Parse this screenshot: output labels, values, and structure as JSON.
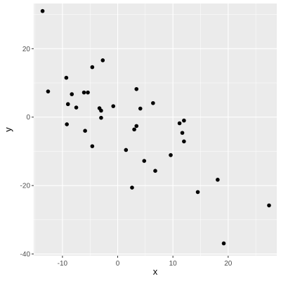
{
  "chart_data": {
    "type": "scatter",
    "title": "",
    "xlabel": "x",
    "ylabel": "y",
    "xlim": [
      -15.2,
      28.8
    ],
    "ylim": [
      -40.5,
      33.2
    ],
    "x_ticks": [
      -10,
      0,
      10,
      20
    ],
    "y_ticks": [
      -40,
      -20,
      0,
      20
    ],
    "grid": true,
    "panel_color": "#ebebeb",
    "point_color": "#000000",
    "points": [
      {
        "x": -13.6,
        "y": 31.0
      },
      {
        "x": -12.6,
        "y": 7.5
      },
      {
        "x": -9.3,
        "y": 11.5
      },
      {
        "x": -9.0,
        "y": 3.8
      },
      {
        "x": -9.2,
        "y": -2.1
      },
      {
        "x": -8.3,
        "y": 6.7
      },
      {
        "x": -7.5,
        "y": 2.8
      },
      {
        "x": -6.1,
        "y": 7.2
      },
      {
        "x": -5.4,
        "y": 7.2
      },
      {
        "x": -5.9,
        "y": -4.0
      },
      {
        "x": -4.6,
        "y": 14.6
      },
      {
        "x": -4.6,
        "y": -8.5
      },
      {
        "x": -3.3,
        "y": 2.6
      },
      {
        "x": -3.0,
        "y": 1.9
      },
      {
        "x": -3.0,
        "y": -0.2
      },
      {
        "x": -2.7,
        "y": 16.6
      },
      {
        "x": -0.8,
        "y": 3.2
      },
      {
        "x": 1.5,
        "y": -9.6
      },
      {
        "x": 2.6,
        "y": -20.6
      },
      {
        "x": 3.0,
        "y": -3.6
      },
      {
        "x": 3.4,
        "y": -2.6
      },
      {
        "x": 3.4,
        "y": 8.2
      },
      {
        "x": 4.1,
        "y": 2.5
      },
      {
        "x": 4.8,
        "y": -12.8
      },
      {
        "x": 6.4,
        "y": 4.1
      },
      {
        "x": 6.8,
        "y": -15.7
      },
      {
        "x": 9.6,
        "y": -11.1
      },
      {
        "x": 11.2,
        "y": -1.8
      },
      {
        "x": 11.7,
        "y": -4.6
      },
      {
        "x": 12.0,
        "y": -1.0
      },
      {
        "x": 12.0,
        "y": -7.1
      },
      {
        "x": 14.5,
        "y": -21.9
      },
      {
        "x": 18.1,
        "y": -18.3
      },
      {
        "x": 19.2,
        "y": -36.9
      },
      {
        "x": 27.4,
        "y": -25.8
      }
    ]
  }
}
